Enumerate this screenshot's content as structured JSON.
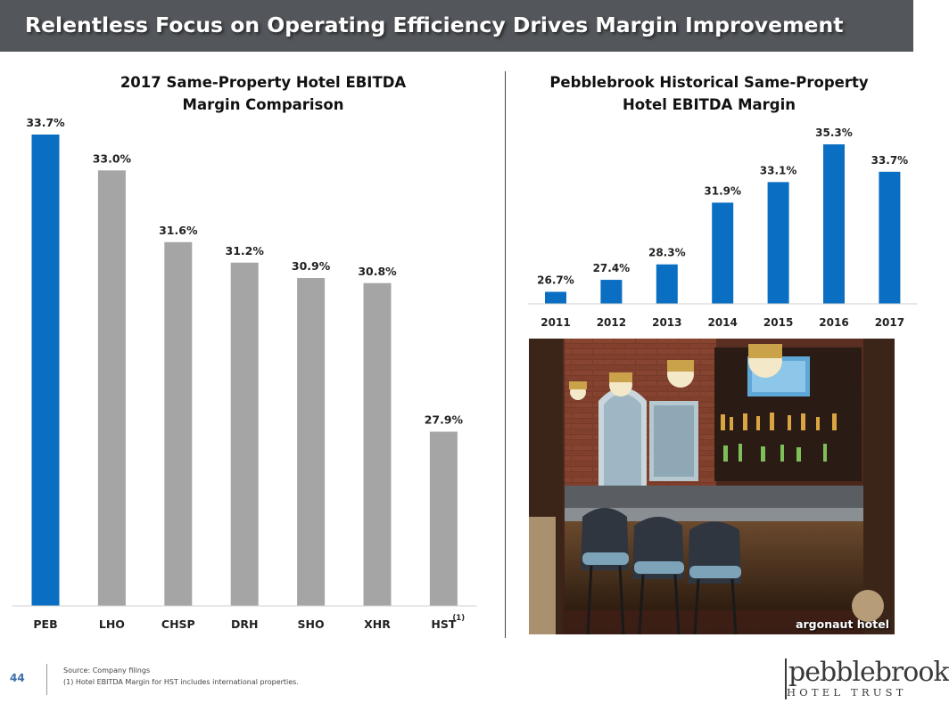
{
  "slide": {
    "title": "Relentless Focus on Operating Efficiency Drives Margin Improvement",
    "page_number": "44",
    "source_line": "Source: Company filings",
    "footnote_line": "(1) Hotel EBITDA Margin for HST includes international properties.",
    "photo_caption": "argonaut hotel",
    "logo_word": "pebblebrook",
    "logo_sub": "HOTEL TRUST"
  },
  "colors": {
    "title_bar": "#53565a",
    "blue": "#0a6fc2",
    "gray": "#a5a5a5"
  },
  "chart_data": [
    {
      "type": "bar",
      "title_line1": "2017 Same-Property Hotel EBITDA",
      "title_line2": "Margin Comparison",
      "categories": [
        "PEB",
        "LHO",
        "CHSP",
        "DRH",
        "SHO",
        "XHR",
        "HST"
      ],
      "values": [
        33.7,
        33.0,
        31.6,
        31.2,
        30.9,
        30.8,
        27.9
      ],
      "labels": [
        "33.7%",
        "33.0%",
        "31.6%",
        "31.2%",
        "30.9%",
        "30.8%",
        "27.9%"
      ],
      "highlight": [
        "PEB"
      ],
      "superscript": {
        "category": "HST",
        "text": "(1)"
      },
      "ylim": [
        24.5,
        33.7
      ],
      "xlabel": "",
      "ylabel": ""
    },
    {
      "type": "bar",
      "title_line1": "Pebblebrook Historical Same-Property",
      "title_line2": "Hotel EBITDA Margin",
      "categories": [
        "2011",
        "2012",
        "2013",
        "2014",
        "2015",
        "2016",
        "2017"
      ],
      "values": [
        26.7,
        27.4,
        28.3,
        31.9,
        33.1,
        35.3,
        33.7
      ],
      "labels": [
        "26.7%",
        "27.4%",
        "28.3%",
        "31.9%",
        "33.1%",
        "35.3%",
        "33.7%"
      ],
      "ylim": [
        26.0,
        35.3
      ],
      "xlabel": "",
      "ylabel": ""
    }
  ]
}
